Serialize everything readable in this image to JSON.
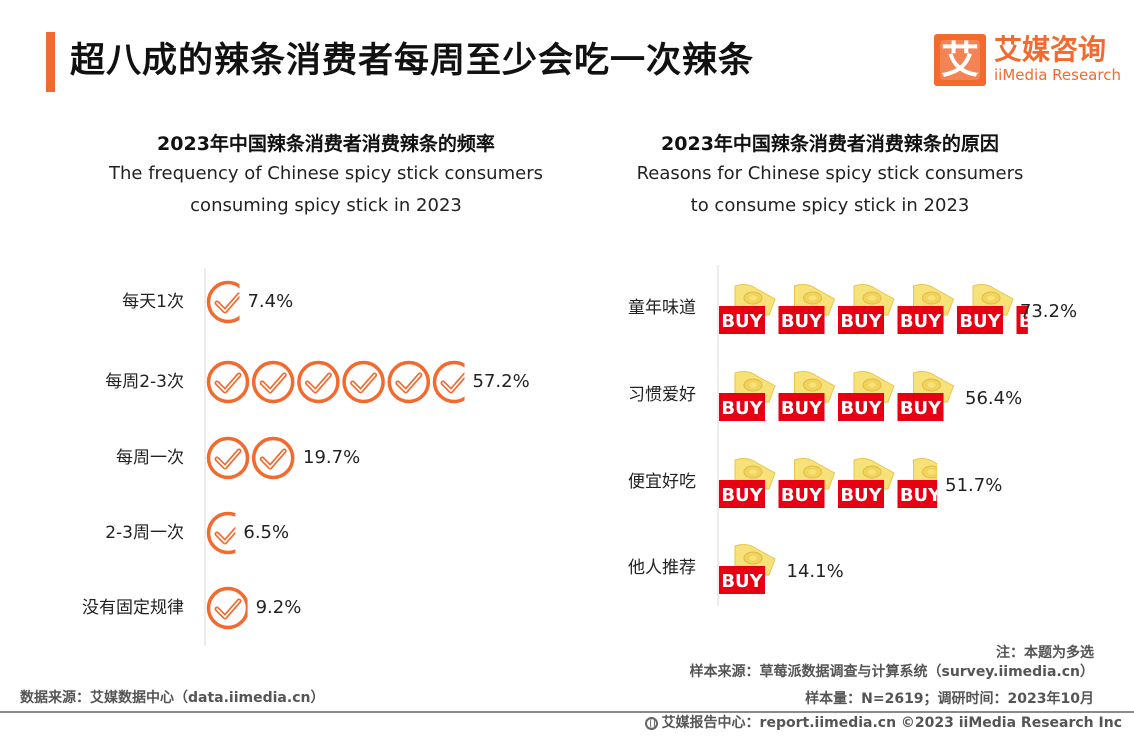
{
  "header": {
    "title": "超八成的辣条消费者每周至少会吃一次辣条",
    "logo_glyph": "艾",
    "logo_cn": "艾媒咨询",
    "logo_en": "iiMedia Research"
  },
  "chart_data": [
    {
      "type": "bar",
      "title": "2023年中国辣条消费者消费辣条的频率",
      "subtitle": "The frequency of Chinese spicy stick consumers consuming spicy stick in 2023",
      "subtitle_lines": [
        "The frequency of Chinese spicy stick consumers",
        "consuming spicy stick in 2023"
      ],
      "orientation": "horizontal",
      "pictogram": "check-circle-icon",
      "unit_percent": 10,
      "categories": [
        "每天1次",
        "每周2-3次",
        "每周一次",
        "2-3周一次",
        "没有固定规律"
      ],
      "values": [
        7.4,
        57.2,
        19.7,
        6.5,
        9.2
      ],
      "value_labels": [
        "7.4%",
        "57.2%",
        "19.7%",
        "6.5%",
        "9.2%"
      ],
      "color": "#f26a2e"
    },
    {
      "type": "bar",
      "title": "2023年中国辣条消费者消费辣条的原因",
      "subtitle": "Reasons for Chinese spicy stick consumers to consume spicy stick in 2023",
      "subtitle_lines": [
        "Reasons for Chinese spicy stick consumers",
        "to consume spicy stick in 2023"
      ],
      "orientation": "horizontal",
      "pictogram": "buy-money-icon",
      "pictogram_text": "BUY",
      "unit_percent": 14.1,
      "categories": [
        "童年味道",
        "习惯爱好",
        "便宜好吃",
        "他人推荐"
      ],
      "values": [
        73.2,
        56.4,
        51.7,
        14.1
      ],
      "value_labels": [
        "73.2%",
        "56.4%",
        "51.7%",
        "14.1%"
      ],
      "color": "#e60012"
    }
  ],
  "footer": {
    "note": "注：本题为多选",
    "sample_source": "样本来源：草莓派数据调查与计算系统（survey.iimedia.cn）",
    "sample_size": "样本量：N=2619；调研时间：2023年10月",
    "data_source": "数据来源：艾媒数据中心（data.iimedia.cn）",
    "report_center": "艾媒报告中心：report.iimedia.cn  ©2023  iiMedia Research  Inc"
  }
}
